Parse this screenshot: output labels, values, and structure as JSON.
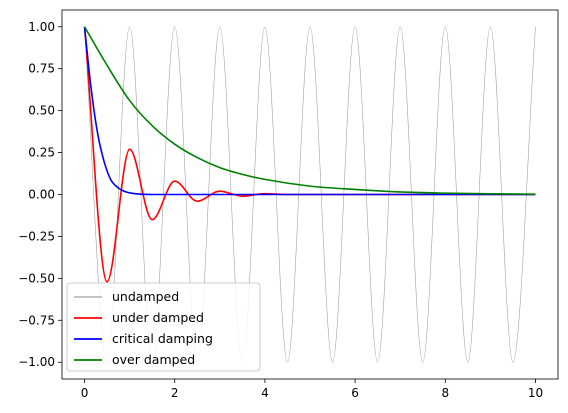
{
  "chart_data": {
    "type": "line",
    "title": "",
    "xlabel": "",
    "ylabel": "",
    "xlim": [
      -0.5,
      10.5
    ],
    "ylim": [
      -1.1,
      1.1
    ],
    "xticks": [
      0,
      2,
      4,
      6,
      8,
      10
    ],
    "xtick_labels": [
      "0",
      "2",
      "4",
      "6",
      "8",
      "10"
    ],
    "yticks": [
      1.0,
      0.75,
      0.5,
      0.25,
      0.0,
      -0.25,
      -0.5,
      -0.75,
      -1.0
    ],
    "ytick_labels": [
      "1.00",
      "0.75",
      "0.50",
      "0.25",
      "0.00",
      "−0.25",
      "−0.50",
      "−0.75",
      "−1.00"
    ],
    "grid": false,
    "legend_position": "lower-left",
    "series": [
      {
        "name": "undamped",
        "color": "#a0a0a0",
        "x": [
          0,
          0.5,
          1,
          1.5,
          2,
          2.5,
          3,
          3.5,
          4,
          4.5,
          5,
          5.5,
          6,
          6.5,
          7,
          7.5,
          8,
          8.5,
          9,
          9.5,
          10
        ],
        "y": [
          1,
          -1,
          1,
          -1,
          1,
          -1,
          1,
          -1,
          1,
          -1,
          1,
          -1,
          1,
          -1,
          1,
          -1,
          1,
          -1,
          1,
          -1,
          1
        ]
      },
      {
        "name": "under damped",
        "color": "#ff0000",
        "x": [
          0,
          0.5,
          1,
          1.5,
          2,
          2.5,
          3,
          3.5,
          4,
          4.5,
          5,
          6,
          7,
          8,
          9,
          10
        ],
        "y": [
          1,
          -0.52,
          0.27,
          -0.15,
          0.08,
          -0.04,
          0.02,
          -0.01,
          0.005,
          0,
          0,
          0,
          0,
          0,
          0,
          0
        ]
      },
      {
        "name": "critical damping",
        "color": "#0000ff",
        "x": [
          0,
          0.1,
          0.2,
          0.3,
          0.4,
          0.5,
          0.6,
          0.8,
          1,
          1.5,
          2,
          3,
          4,
          5,
          6,
          7,
          8,
          9,
          10
        ],
        "y": [
          1,
          0.74,
          0.52,
          0.35,
          0.23,
          0.14,
          0.08,
          0.03,
          0.01,
          0,
          0,
          0,
          0,
          0,
          0,
          0,
          0,
          0,
          0
        ]
      },
      {
        "name": "over damped",
        "color": "#008000",
        "x": [
          0,
          0.5,
          1,
          1.5,
          2,
          2.5,
          3,
          3.5,
          4,
          5,
          6,
          7,
          8,
          9,
          10
        ],
        "y": [
          1,
          0.77,
          0.56,
          0.41,
          0.3,
          0.22,
          0.16,
          0.12,
          0.09,
          0.05,
          0.03,
          0.015,
          0.008,
          0.004,
          0.002
        ]
      }
    ]
  }
}
